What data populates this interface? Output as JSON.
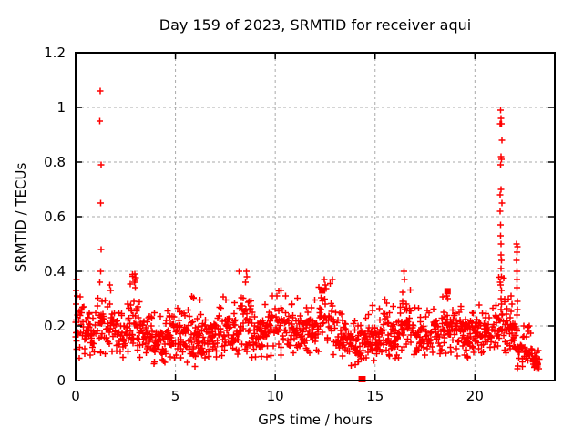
{
  "chart_data": {
    "type": "scatter",
    "title": "Day 159 of 2023, SRMTID for receiver aqui",
    "xlabel": "GPS time / hours",
    "ylabel": "SRMTID / TECUs",
    "xlim": [
      0,
      24
    ],
    "ylim": [
      0,
      1.2
    ],
    "xtick_values": [
      0,
      5,
      10,
      15,
      20
    ],
    "xtick_labels": [
      "0",
      "5",
      "10",
      "15",
      "20"
    ],
    "ytick_values": [
      0,
      0.2,
      0.4,
      0.6,
      0.8,
      1,
      1.2
    ],
    "ytick_labels": [
      "0",
      "0.2",
      "0.4",
      "0.6",
      "0.8",
      "1",
      "1.2"
    ],
    "grid": {
      "on": true,
      "style": "dashed",
      "color": "#aaaaaa"
    },
    "legend": "none",
    "marker": "plus",
    "marker_color": "#ff0000",
    "border_color": "#000000",
    "series_name": "SRMTID",
    "outlier_points": [
      [
        0.02,
        0.28
      ],
      [
        0.03,
        0.33
      ],
      [
        0.05,
        0.37
      ],
      [
        0.07,
        0.31
      ],
      [
        1.2,
        0.95
      ],
      [
        1.23,
        1.06
      ],
      [
        1.22,
        0.36
      ],
      [
        1.25,
        0.4
      ],
      [
        1.26,
        0.65
      ],
      [
        1.27,
        0.48
      ],
      [
        1.28,
        0.79
      ],
      [
        1.72,
        0.35
      ],
      [
        1.76,
        0.33
      ],
      [
        2.95,
        0.36
      ],
      [
        2.97,
        0.39
      ],
      [
        2.99,
        0.34
      ],
      [
        8.52,
        0.36
      ],
      [
        8.55,
        0.4
      ],
      [
        8.58,
        0.38
      ],
      [
        10.3,
        0.33
      ],
      [
        12.45,
        0.37
      ],
      [
        12.5,
        0.35
      ],
      [
        16.45,
        0.4
      ],
      [
        16.48,
        0.37
      ],
      [
        18.6,
        0.31
      ],
      [
        18.65,
        0.3
      ],
      [
        21.26,
        0.22
      ],
      [
        21.27,
        0.94
      ],
      [
        21.27,
        0.68
      ],
      [
        21.27,
        0.62
      ],
      [
        21.28,
        0.99
      ],
      [
        21.28,
        0.57
      ],
      [
        21.28,
        0.53
      ],
      [
        21.29,
        0.79
      ],
      [
        21.29,
        0.35
      ],
      [
        21.3,
        0.96
      ],
      [
        21.3,
        0.82
      ],
      [
        21.3,
        0.7
      ],
      [
        21.3,
        0.5
      ],
      [
        21.3,
        0.46
      ],
      [
        21.3,
        0.3
      ],
      [
        21.31,
        0.41
      ],
      [
        21.31,
        0.26
      ],
      [
        21.32,
        0.44
      ],
      [
        21.32,
        0.33
      ],
      [
        21.33,
        0.94
      ],
      [
        21.33,
        0.81
      ],
      [
        21.33,
        0.28
      ],
      [
        21.34,
        0.38
      ],
      [
        21.35,
        0.88
      ],
      [
        21.35,
        0.65
      ],
      [
        21.36,
        0.24
      ],
      [
        21.8,
        0.31
      ],
      [
        21.85,
        0.28
      ],
      [
        22.08,
        0.5
      ],
      [
        22.09,
        0.44
      ],
      [
        22.1,
        0.47
      ],
      [
        22.1,
        0.4
      ],
      [
        22.1,
        0.34
      ],
      [
        22.1,
        0.24
      ],
      [
        22.11,
        0.37
      ],
      [
        22.12,
        0.49
      ],
      [
        22.12,
        0.29
      ],
      [
        22.14,
        0.26
      ],
      [
        23.05,
        0.09
      ],
      [
        23.1,
        0.07
      ],
      [
        23.15,
        0.06
      ]
    ],
    "square_points": [
      [
        12.35,
        0.33
      ],
      [
        14.33,
        0.005
      ],
      [
        14.37,
        0.005
      ],
      [
        18.63,
        0.327
      ]
    ],
    "dense_bands": [
      {
        "x0": 0.0,
        "x1": 0.4,
        "n": 14,
        "ymin": 0.08,
        "ymax": 0.37
      },
      {
        "x0": 0.4,
        "x1": 1.1,
        "n": 24,
        "ymin": 0.09,
        "ymax": 0.28
      },
      {
        "x0": 1.1,
        "x1": 1.45,
        "n": 12,
        "ymin": 0.1,
        "ymax": 0.34
      },
      {
        "x0": 1.45,
        "x1": 2.1,
        "n": 22,
        "ymin": 0.08,
        "ymax": 0.35
      },
      {
        "x0": 2.1,
        "x1": 2.6,
        "n": 17,
        "ymin": 0.08,
        "ymax": 0.28
      },
      {
        "x0": 2.6,
        "x1": 3.1,
        "n": 17,
        "ymin": 0.1,
        "ymax": 0.39
      },
      {
        "x0": 3.1,
        "x1": 3.6,
        "n": 17,
        "ymin": 0.08,
        "ymax": 0.3
      },
      {
        "x0": 3.6,
        "x1": 4.6,
        "n": 33,
        "ymin": 0.06,
        "ymax": 0.26
      },
      {
        "x0": 4.6,
        "x1": 5.6,
        "n": 33,
        "ymin": 0.08,
        "ymax": 0.28
      },
      {
        "x0": 5.6,
        "x1": 6.4,
        "n": 27,
        "ymin": 0.04,
        "ymax": 0.31
      },
      {
        "x0": 6.4,
        "x1": 7.4,
        "n": 33,
        "ymin": 0.08,
        "ymax": 0.28
      },
      {
        "x0": 7.4,
        "x1": 8.2,
        "n": 27,
        "ymin": 0.08,
        "ymax": 0.31
      },
      {
        "x0": 8.2,
        "x1": 8.8,
        "n": 20,
        "ymin": 0.1,
        "ymax": 0.4
      },
      {
        "x0": 8.8,
        "x1": 9.6,
        "n": 27,
        "ymin": 0.08,
        "ymax": 0.3
      },
      {
        "x0": 9.6,
        "x1": 10.6,
        "n": 33,
        "ymin": 0.09,
        "ymax": 0.33
      },
      {
        "x0": 10.6,
        "x1": 11.6,
        "n": 33,
        "ymin": 0.08,
        "ymax": 0.31
      },
      {
        "x0": 11.6,
        "x1": 12.2,
        "n": 20,
        "ymin": 0.1,
        "ymax": 0.3
      },
      {
        "x0": 12.2,
        "x1": 12.9,
        "n": 23,
        "ymin": 0.12,
        "ymax": 0.37
      },
      {
        "x0": 12.9,
        "x1": 13.6,
        "n": 23,
        "ymin": 0.08,
        "ymax": 0.3
      },
      {
        "x0": 13.6,
        "x1": 14.6,
        "n": 33,
        "ymin": 0.05,
        "ymax": 0.25
      },
      {
        "x0": 14.6,
        "x1": 15.4,
        "n": 27,
        "ymin": 0.06,
        "ymax": 0.28
      },
      {
        "x0": 15.4,
        "x1": 16.2,
        "n": 27,
        "ymin": 0.08,
        "ymax": 0.3
      },
      {
        "x0": 16.2,
        "x1": 16.8,
        "n": 20,
        "ymin": 0.1,
        "ymax": 0.4
      },
      {
        "x0": 16.8,
        "x1": 17.8,
        "n": 33,
        "ymin": 0.08,
        "ymax": 0.28
      },
      {
        "x0": 17.8,
        "x1": 18.4,
        "n": 20,
        "ymin": 0.08,
        "ymax": 0.3
      },
      {
        "x0": 18.4,
        "x1": 19.0,
        "n": 20,
        "ymin": 0.1,
        "ymax": 0.33
      },
      {
        "x0": 19.0,
        "x1": 20.0,
        "n": 33,
        "ymin": 0.08,
        "ymax": 0.3
      },
      {
        "x0": 20.0,
        "x1": 20.9,
        "n": 30,
        "ymin": 0.1,
        "ymax": 0.28
      },
      {
        "x0": 20.9,
        "x1": 21.5,
        "n": 20,
        "ymin": 0.1,
        "ymax": 0.38
      },
      {
        "x0": 21.5,
        "x1": 22.1,
        "n": 20,
        "ymin": 0.1,
        "ymax": 0.31
      },
      {
        "x0": 22.1,
        "x1": 22.9,
        "n": 26,
        "ymin": 0.04,
        "ymax": 0.2
      },
      {
        "x0": 22.9,
        "x1": 23.25,
        "n": 10,
        "ymin": 0.04,
        "ymax": 0.12
      }
    ]
  }
}
